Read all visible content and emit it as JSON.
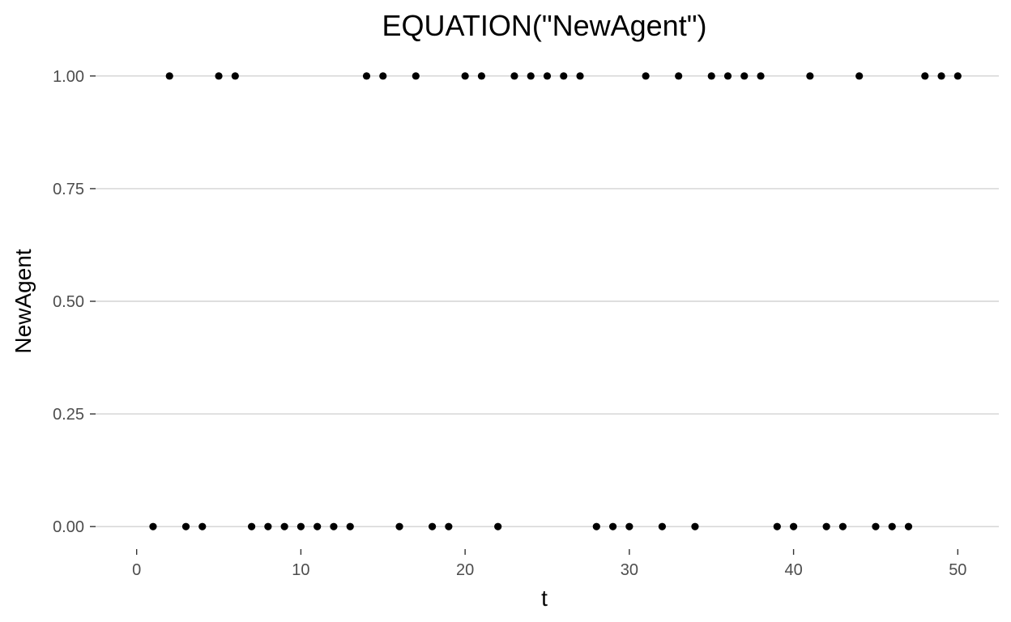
{
  "chart_data": {
    "type": "scatter",
    "title": "EQUATION(\"NewAgent\")",
    "xlabel": "t",
    "ylabel": "NewAgent",
    "xlim": [
      -2.5,
      52.5
    ],
    "ylim": [
      -0.05,
      1.05
    ],
    "x_ticks": [
      0,
      10,
      20,
      30,
      40,
      50
    ],
    "x_tick_labels": [
      "0",
      "10",
      "20",
      "30",
      "40",
      "50"
    ],
    "y_ticks": [
      0,
      0.25,
      0.5,
      0.75,
      1
    ],
    "y_tick_labels": [
      "0.00",
      "0.25",
      "0.50",
      "0.75",
      "1.00"
    ],
    "grid": "horizontal major",
    "point_color": "#000000",
    "series": [
      {
        "x": [
          1,
          2,
          3,
          4,
          5,
          6,
          7,
          8,
          9,
          10,
          11,
          12,
          13,
          14,
          15,
          16,
          17,
          18,
          19,
          20,
          21,
          22,
          23,
          24,
          25,
          26,
          27,
          28,
          29,
          30,
          31,
          32,
          33,
          34,
          35,
          36,
          37,
          38,
          39,
          40,
          41,
          42,
          43,
          44,
          45,
          46,
          47,
          48,
          49,
          50
        ],
        "y": [
          0,
          1,
          0,
          0,
          1,
          1,
          0,
          0,
          0,
          0,
          0,
          0,
          0,
          1,
          1,
          0,
          1,
          0,
          0,
          1,
          1,
          0,
          1,
          1,
          1,
          1,
          1,
          0,
          0,
          0,
          1,
          0,
          1,
          0,
          1,
          1,
          1,
          1,
          0,
          0,
          1,
          0,
          0,
          1,
          0,
          0,
          0,
          1,
          1,
          1
        ]
      }
    ]
  }
}
